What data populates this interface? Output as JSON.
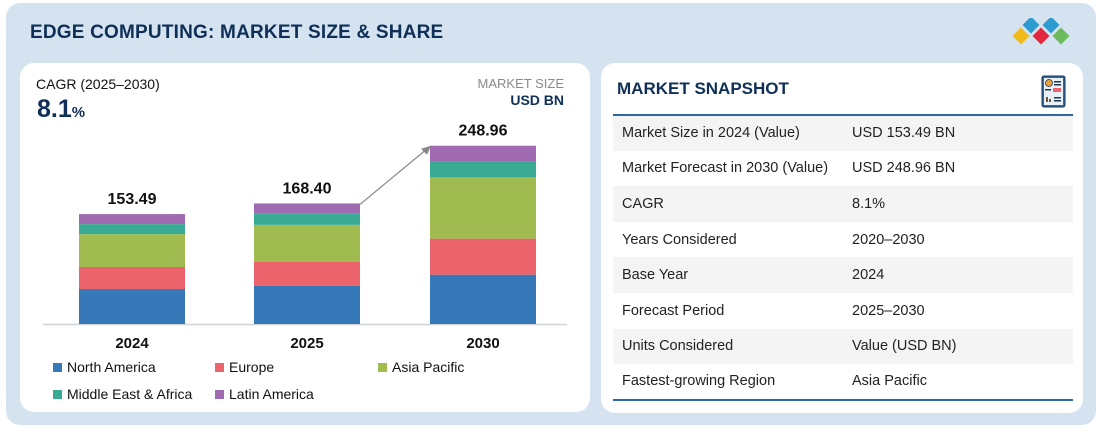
{
  "header": {
    "title": "EDGE COMPUTING: MARKET SIZE & SHARE"
  },
  "left": {
    "cagr_label": "CAGR (2025–2030)",
    "cagr_value": "8.1",
    "cagr_unit": "%",
    "market_size_label": "MARKET SIZE",
    "market_size_unit": "USD BN"
  },
  "chart_data": {
    "type": "bar",
    "stacked": true,
    "categories": [
      "2024",
      "2025",
      "2030"
    ],
    "totals": [
      "153.49",
      "168.40",
      "248.96"
    ],
    "series": [
      {
        "name": "North America",
        "color": "#3778b8",
        "values": [
          48.9,
          53.1,
          68.9
        ]
      },
      {
        "name": "Europe",
        "color": "#ec636b",
        "values": [
          30.7,
          34.0,
          50.3
        ]
      },
      {
        "name": "Asia Pacific",
        "color": "#a0bb50",
        "values": [
          45.9,
          51.4,
          85.56
        ]
      },
      {
        "name": "Middle East & Africa",
        "color": "#39ab94",
        "values": [
          14.0,
          15.5,
          22.3
        ]
      },
      {
        "name": "Latin America",
        "color": "#a06ab0",
        "values": [
          14.0,
          14.4,
          21.9
        ]
      }
    ],
    "ylim": [
      0,
      260
    ],
    "legend": "bottom",
    "grid": false
  },
  "snapshot": {
    "title": "MARKET SNAPSHOT",
    "rows": [
      {
        "label": "Market Size in 2024 (Value)",
        "value": "USD 153.49 BN"
      },
      {
        "label": "Market Forecast in 2030 (Value)",
        "value": "USD 248.96 BN"
      },
      {
        "label": "CAGR",
        "value": "8.1%"
      },
      {
        "label": "Years Considered",
        "value": "2020–2030"
      },
      {
        "label": "Base Year",
        "value": "2024"
      },
      {
        "label": "Forecast Period",
        "value": "2025–2030"
      },
      {
        "label": "Units Considered",
        "value": "Value (USD BN)"
      },
      {
        "label": "Fastest-growing Region",
        "value": "Asia Pacific"
      }
    ]
  }
}
